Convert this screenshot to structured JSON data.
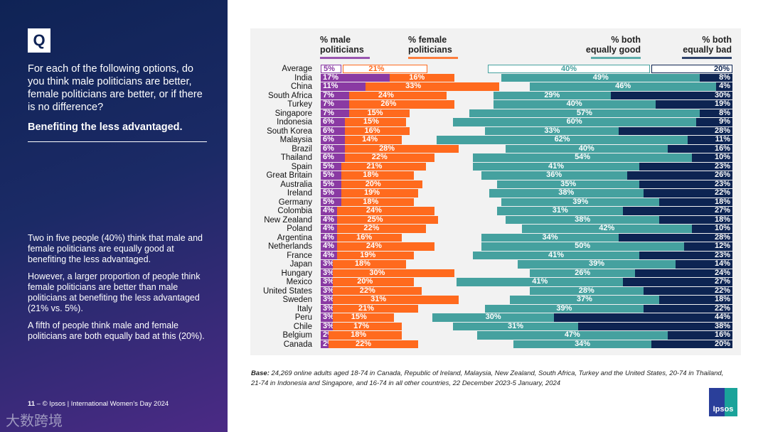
{
  "left": {
    "q": "Q",
    "question": "For each of the following options, do you think male politicians are better, female politicians are better, or if there is no difference?",
    "topic": "Benefiting the less advantaged.",
    "summary": [
      "Two in five people (40%) think that male and female politicians are equally good at benefiting the less advantaged.",
      "However, a larger proportion of people think female politicians are better than male politicians at benefiting the less advantaged (21% vs. 5%).",
      "A fifth of people think male and female politicians are both equally bad at this (20%)."
    ],
    "footer_num": "11",
    "footer_text": " – © Ipsos | International Women’s Day 2024",
    "watermark": "大数跨境"
  },
  "base": {
    "label": "Base:",
    "text": " 24,269 online adults aged 18-74 in Canada, Republic of Ireland, Malaysia, New Zealand, South Africa, Turkey and the United States, 20-74 in Thailand, 21-74 in Indonesia and Singapore, and 16-74 in all other countries, 22 December 2023-5 January, 2024"
  },
  "logo": "Ipsos",
  "colors": {
    "male": "#8a3aa3",
    "female": "#ff6a1e",
    "good": "#45a19f",
    "bad": "#0d2452"
  },
  "chart_data": {
    "type": "bar",
    "stacked": "diverging",
    "series": [
      {
        "name": "% male politicians"
      },
      {
        "name": "% female politicians"
      },
      {
        "name": "% both equally good"
      },
      {
        "name": "% both equally bad"
      }
    ],
    "categories": [
      "Average",
      "India",
      "China",
      "South Africa",
      "Turkey",
      "Singapore",
      "Indonesia",
      "South Korea",
      "Malaysia",
      "Brazil",
      "Thailand",
      "Spain",
      "Great Britain",
      "Australia",
      "Ireland",
      "Germany",
      "Colombia",
      "New Zealand",
      "Poland",
      "Argentina",
      "Netherlands",
      "France",
      "Japan",
      "Hungary",
      "Mexico",
      "United States",
      "Sweden",
      "Italy",
      "Peru",
      "Chile",
      "Belgium",
      "Canada"
    ],
    "male": [
      5,
      17,
      11,
      7,
      7,
      7,
      6,
      6,
      6,
      6,
      6,
      5,
      5,
      5,
      5,
      5,
      4,
      4,
      4,
      4,
      4,
      4,
      3,
      3,
      3,
      3,
      3,
      3,
      3,
      3,
      2,
      2
    ],
    "female": [
      21,
      16,
      33,
      24,
      26,
      15,
      15,
      16,
      14,
      28,
      22,
      21,
      18,
      20,
      19,
      18,
      24,
      25,
      22,
      16,
      24,
      19,
      18,
      30,
      20,
      22,
      31,
      21,
      15,
      17,
      18,
      22
    ],
    "good": [
      40,
      49,
      46,
      29,
      40,
      57,
      60,
      33,
      62,
      40,
      54,
      41,
      36,
      35,
      38,
      39,
      31,
      38,
      42,
      34,
      50,
      41,
      39,
      26,
      41,
      28,
      37,
      39,
      30,
      31,
      47,
      34
    ],
    "bad": [
      20,
      8,
      4,
      30,
      19,
      8,
      9,
      28,
      11,
      16,
      10,
      23,
      26,
      23,
      22,
      18,
      27,
      18,
      10,
      28,
      12,
      23,
      14,
      24,
      27,
      22,
      18,
      22,
      44,
      38,
      16,
      20
    ]
  }
}
